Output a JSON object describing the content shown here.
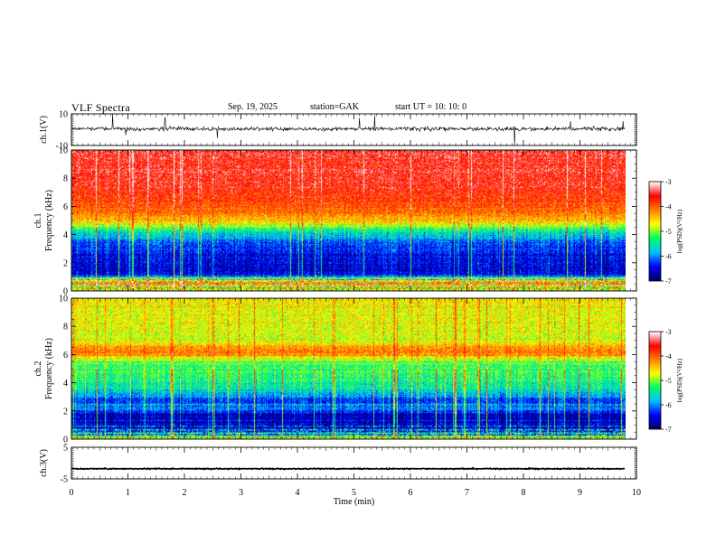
{
  "header": {
    "title": "VLF  Spectra",
    "date": "Sep. 19, 2025",
    "station": "station=GAK",
    "start_ut": "start  UT  =    10: 10: 0"
  },
  "chart_data": [
    {
      "type": "line",
      "name": "ch1-waveform",
      "ylabel": "ch.1(V)",
      "ylim": [
        -10,
        10
      ],
      "yticks": [
        "10",
        "-10"
      ],
      "xlim": [
        0,
        10
      ],
      "data_extent_min": 9.8,
      "baseline_value": 0.5,
      "note": "dense noise waveform with spikes"
    },
    {
      "type": "heatmap",
      "name": "ch1-spectrogram",
      "ylabel": "ch.1\nFrequency  (kHz)",
      "ylabel_line1": "ch.1",
      "ylabel_line2": "Frequency  (kHz)",
      "ylim": [
        0,
        10
      ],
      "yticks": [
        "0",
        "2",
        "4",
        "6",
        "8",
        "10"
      ],
      "xlim": [
        0,
        10
      ],
      "data_extent_min": 9.8,
      "colorbar": {
        "label": "log(PSD)(V²/Hz)",
        "ticks": [
          "-3",
          "-4",
          "-5",
          "-6",
          "-7"
        ],
        "range": [
          -7,
          -3
        ]
      },
      "profile_khz_to_logpsd": [
        [
          0,
          -5.2
        ],
        [
          0.6,
          -4.0
        ],
        [
          1.2,
          -6.6
        ],
        [
          2.5,
          -6.5
        ],
        [
          3.5,
          -6.2
        ],
        [
          4.4,
          -5.3
        ],
        [
          5.0,
          -4.4
        ],
        [
          6.0,
          -3.9
        ],
        [
          7.5,
          -3.6
        ],
        [
          10,
          -3.5
        ]
      ]
    },
    {
      "type": "heatmap",
      "name": "ch2-spectrogram",
      "ylabel_line1": "ch.2",
      "ylabel_line2": "Frequency  (kHz)",
      "ylim": [
        0,
        10
      ],
      "yticks": [
        "0",
        "2",
        "4",
        "6",
        "8",
        "10"
      ],
      "xlim": [
        0,
        10
      ],
      "data_extent_min": 9.8,
      "colorbar": {
        "label": "log(PSD)(V²/Hz)",
        "ticks": [
          "-3",
          "-4",
          "-5",
          "-6",
          "-7"
        ],
        "range": [
          -7,
          -3
        ]
      },
      "profile_khz_to_logpsd": [
        [
          0,
          -4.8
        ],
        [
          0.8,
          -6.6
        ],
        [
          1.8,
          -6.7
        ],
        [
          2.2,
          -6.0
        ],
        [
          2.8,
          -6.3
        ],
        [
          3.5,
          -5.6
        ],
        [
          4.5,
          -5.3
        ],
        [
          5.5,
          -5.2
        ],
        [
          6.2,
          -4.0
        ],
        [
          7.0,
          -4.8
        ],
        [
          10,
          -4.7
        ]
      ]
    },
    {
      "type": "line",
      "name": "ch3-waveform",
      "ylabel": "ch.3(V)",
      "ylim": [
        -5,
        5
      ],
      "yticks": [
        "5",
        "-5"
      ],
      "xlim": [
        0,
        10
      ],
      "data_extent_min": 9.8,
      "baseline_value": -1.8
    }
  ],
  "xaxis": {
    "label": "Time  (min)",
    "ticks": [
      "0",
      "1",
      "2",
      "3",
      "4",
      "5",
      "6",
      "7",
      "8",
      "9",
      "10"
    ]
  },
  "colors": {
    "colormap": [
      "#000066",
      "#0000ff",
      "#00c0ff",
      "#00ff60",
      "#ffff00",
      "#ff8000",
      "#ff0000",
      "#ffffff"
    ]
  }
}
